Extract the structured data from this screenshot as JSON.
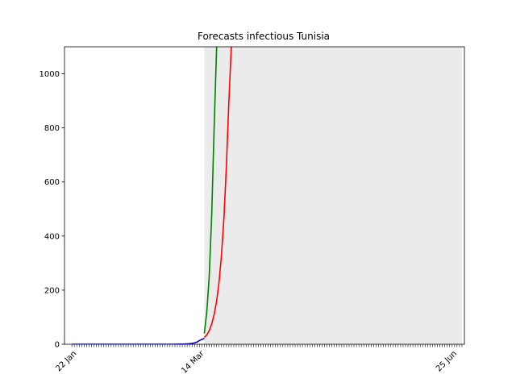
{
  "chart_data": {
    "type": "line",
    "title": "Forecasts infectious Tunisia",
    "xlabel": "",
    "ylabel": "",
    "x_axis": {
      "start_date": "2020-01-17",
      "end_date": "2020-06-28",
      "labeled_ticks": [
        {
          "date": "2020-01-22",
          "label": "22 Jan"
        },
        {
          "date": "2020-03-14",
          "label": "14 Mar"
        },
        {
          "date": "2020-06-25",
          "label": "25 Jun"
        }
      ]
    },
    "ylim": [
      0,
      1100
    ],
    "yticks": [
      0,
      200,
      400,
      600,
      800,
      1000
    ],
    "forecast_region": {
      "start": "2020-03-14",
      "end": "2020-06-27",
      "color": "#ebebeb"
    },
    "grid": false,
    "series": [
      {
        "color": "#0000ff",
        "points": [
          [
            "2020-01-20",
            0
          ],
          [
            "2020-02-20",
            0
          ],
          [
            "2020-03-01",
            0
          ],
          [
            "2020-03-06",
            1
          ],
          [
            "2020-03-08",
            2
          ],
          [
            "2020-03-10",
            5
          ],
          [
            "2020-03-11",
            8
          ],
          [
            "2020-03-12",
            14
          ],
          [
            "2020-03-13",
            18
          ],
          [
            "2020-03-14",
            22
          ]
        ]
      },
      {
        "color": "#008000",
        "points": [
          [
            "2020-03-14",
            40
          ],
          [
            "2020-03-15",
            120
          ],
          [
            "2020-03-16",
            250
          ],
          [
            "2020-03-17",
            480
          ],
          [
            "2020-03-18",
            800
          ],
          [
            "2020-03-19",
            1100
          ]
        ]
      },
      {
        "color": "#ff0000",
        "points": [
          [
            "2020-03-14",
            25
          ],
          [
            "2020-03-15",
            35
          ],
          [
            "2020-03-16",
            50
          ],
          [
            "2020-03-17",
            75
          ],
          [
            "2020-03-18",
            110
          ],
          [
            "2020-03-19",
            160
          ],
          [
            "2020-03-20",
            230
          ],
          [
            "2020-03-21",
            330
          ],
          [
            "2020-03-22",
            470
          ],
          [
            "2020-03-23",
            660
          ],
          [
            "2020-03-24",
            900
          ],
          [
            "2020-03-25",
            1100
          ]
        ]
      }
    ]
  }
}
